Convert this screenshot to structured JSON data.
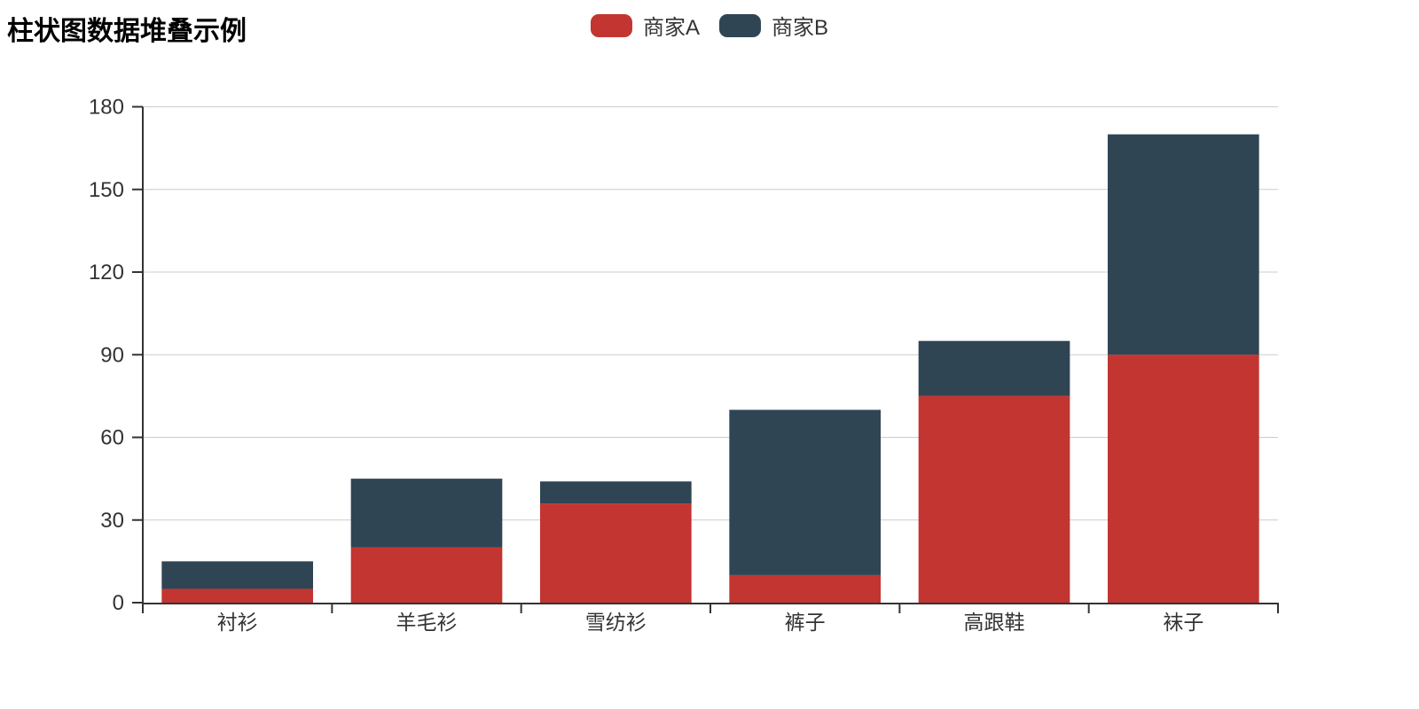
{
  "title": "柱状图数据堆叠示例",
  "legend": {
    "items": [
      {
        "label": "商家A",
        "color": "#c23531"
      },
      {
        "label": "商家B",
        "color": "#2f4554"
      }
    ]
  },
  "chart_data": {
    "type": "bar",
    "stacked": true,
    "title": "柱状图数据堆叠示例",
    "categories": [
      "衬衫",
      "羊毛衫",
      "雪纺衫",
      "裤子",
      "高跟鞋",
      "袜子"
    ],
    "series": [
      {
        "name": "商家A",
        "color": "#c23531",
        "values": [
          5,
          20,
          36,
          10,
          75,
          90
        ]
      },
      {
        "name": "商家B",
        "color": "#2f4554",
        "values": [
          10,
          25,
          8,
          60,
          20,
          80
        ]
      }
    ],
    "stack_totals": [
      15,
      45,
      44,
      70,
      95,
      170
    ],
    "xlabel": "",
    "ylabel": "",
    "ylim": [
      0,
      180
    ],
    "yticks": [
      0,
      30,
      60,
      90,
      120,
      150,
      180
    ],
    "grid": true,
    "legend_position": "top-center",
    "colors": {
      "axis_line": "#333333",
      "grid_line": "#cccccc",
      "tick_label": "#333333",
      "background": "#ffffff"
    },
    "bar_width_percent": 80
  }
}
